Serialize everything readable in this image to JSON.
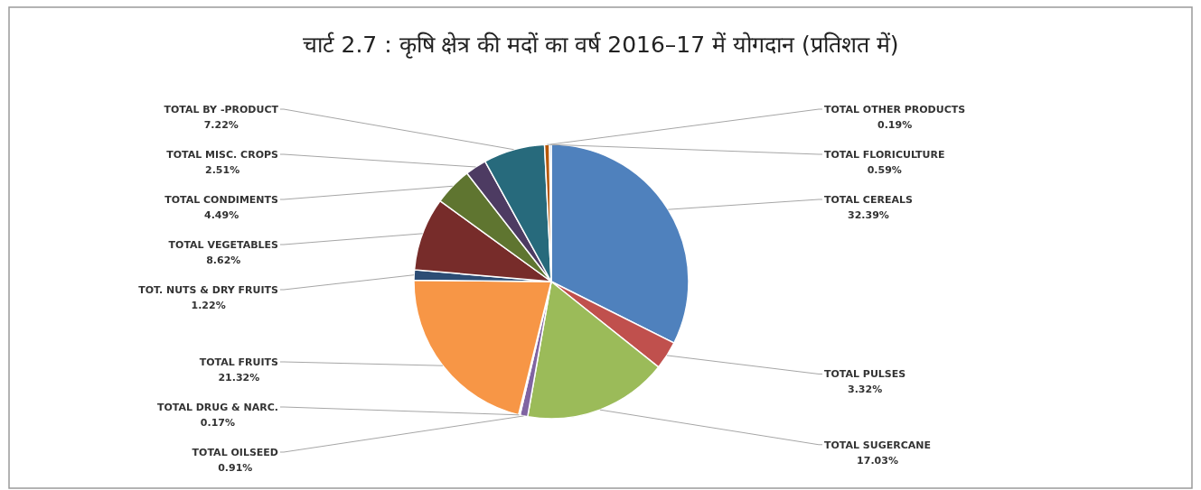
{
  "chart_data": {
    "type": "pie",
    "title": "चार्ट 2.7 : कृषि क्षेत्र की मदों का वर्ष 2016–17 में योगदान (प्रतिशत में)",
    "categories": [
      "TOTAL CEREALS",
      "TOTAL PULSES",
      "TOTAL SUGERCANE",
      "TOTAL OILSEED",
      "TOTAL DRUG & NARC.",
      "TOTAL FRUITS",
      "TOT. NUTS & DRY FRUITS",
      "TOTAL VEGETABLES",
      "TOTAL CONDIMENTS",
      "TOTAL MISC. CROPS",
      "TOTAL BY -PRODUCT",
      "TOTAL FLORICULTURE",
      "TOTAL OTHER PRODUCTS"
    ],
    "values": [
      32.39,
      3.32,
      17.03,
      0.91,
      0.17,
      21.32,
      1.22,
      8.62,
      4.49,
      2.51,
      7.22,
      0.59,
      0.19
    ],
    "value_labels": [
      "32.39%",
      "3.32%",
      "17.03%",
      "0.91%",
      "0.17%",
      "21.32%",
      "1.22%",
      "8.62%",
      "4.49%",
      "2.51%",
      "7.22%",
      "0.59%",
      "0.19%"
    ],
    "colors": [
      "#4f81bd",
      "#c0504d",
      "#9bbb59",
      "#8064a2",
      "#4bacc6",
      "#f79646",
      "#2c4d75",
      "#772c2a",
      "#5f7530",
      "#4d3b62",
      "#276a7c",
      "#b65708",
      "#729aca"
    ],
    "legend": false
  }
}
